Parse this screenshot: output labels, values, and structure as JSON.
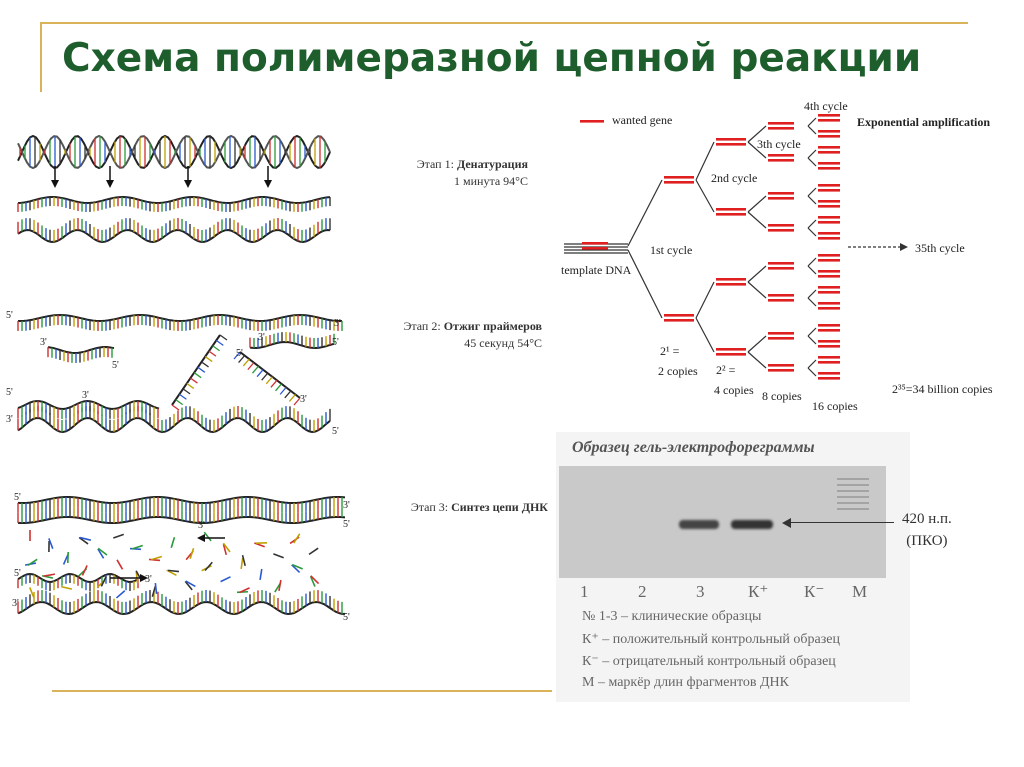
{
  "title": "Схема полимеразной цепной реакции",
  "stages": [
    {
      "name": "Этап 1:",
      "bold": "Денатурация",
      "detail": "1 минута 94°С"
    },
    {
      "name": "Этап 2:",
      "bold": "Отжиг праймеров",
      "detail": "45 секунд 54°С"
    },
    {
      "name": "Этап 3:",
      "bold": "Синтез цепи ДНК",
      "detail": ""
    }
  ],
  "amplification": {
    "legend_label": "wanted gene",
    "template_label": "template DNA",
    "header": "Exponential amplification",
    "cycles": [
      "1st cycle",
      "2nd cycle",
      "3th cycle",
      "4th cycle"
    ],
    "final_cycle": "35th cycle",
    "copies": [
      "2 copies",
      "4 copies",
      "8 copies",
      "16 copies"
    ],
    "formula_1": "2¹ =",
    "formula_2": "2² =",
    "billion": "2³⁵=34 billion copies"
  },
  "gel": {
    "title": "Образец гель-электрофореграммы",
    "lanes": [
      "1",
      "2",
      "3",
      "К⁺",
      "К⁻",
      "М"
    ],
    "band_label_1": "420 н.п.",
    "band_label_2": "(ПКО)",
    "legend": [
      "№ 1-3 – клинические образцы",
      "К⁺ – положительный контрольный образец",
      "К⁻ – отрицательный контрольный образец",
      "М – маркёр длин фрагментов ДНК"
    ]
  },
  "strand_labels": {
    "five": "5'",
    "three": "3'"
  },
  "colors": {
    "title": "#1e5e2c",
    "accent": "#d9b35a",
    "gene": "#e02020"
  }
}
